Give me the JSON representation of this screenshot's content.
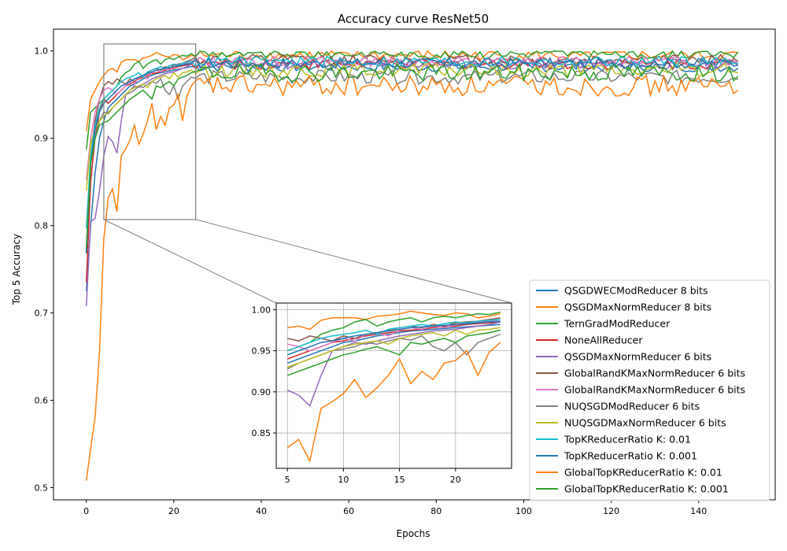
{
  "chart_data": {
    "type": "line",
    "title": "Accuracy curve ResNet50",
    "xlabel": "Epochs",
    "ylabel": "Top 5 Accuracy",
    "xlim": [
      -7.5,
      157.5
    ],
    "ylim": [
      0.486,
      1.025
    ],
    "xticks": [
      0,
      20,
      40,
      60,
      80,
      100,
      120,
      140
    ],
    "yticks": [
      0.5,
      0.6,
      0.7,
      0.8,
      0.9,
      1.0
    ],
    "grid": false,
    "legend_position": "bottom-right",
    "n_epochs": 150,
    "inset": {
      "xlim": [
        4,
        25
      ],
      "ylim": [
        0.807,
        1.008
      ],
      "xticks": [
        5,
        10,
        15,
        20
      ],
      "yticks": [
        0.85,
        0.9,
        0.95,
        1.0
      ],
      "grid": true
    },
    "series": [
      {
        "name": "QSGDWECModReducer 8 bits",
        "color": "#1f77b4",
        "start": 0.725,
        "early": [
          0.8,
          0.86,
          0.9,
          0.92,
          0.935,
          0.94,
          0.945,
          0.95,
          0.955,
          0.96,
          0.962,
          0.965,
          0.968,
          0.97,
          0.972,
          0.974,
          0.975,
          0.976,
          0.977,
          0.978,
          0.979,
          0.98,
          0.981,
          0.982
        ],
        "plateau": 0.99,
        "noise": 0.003
      },
      {
        "name": "QSGDMaxNormReducer 8 bits",
        "color": "#ff7f0e",
        "start": 0.908,
        "early": [
          0.945,
          0.955,
          0.965,
          0.972,
          0.978,
          0.98,
          0.976,
          0.987,
          0.99,
          0.99,
          0.99,
          0.988,
          0.992,
          0.993,
          0.995,
          0.998,
          0.996,
          0.994,
          0.993,
          0.996,
          0.995,
          0.99,
          0.992,
          0.995
        ],
        "plateau": 0.995,
        "noise": 0.003
      },
      {
        "name": "TernGradModReducer",
        "color": "#2ca02c",
        "start": 0.887,
        "early": [
          0.93,
          0.935,
          0.94,
          0.945,
          0.95,
          0.955,
          0.96,
          0.97,
          0.975,
          0.978,
          0.985,
          0.988,
          0.98,
          0.985,
          0.988,
          0.99,
          0.985,
          0.99,
          0.992,
          0.99,
          0.993,
          0.995,
          0.994,
          0.997
        ],
        "plateau": 0.996,
        "noise": 0.003
      },
      {
        "name": "NoneAllReducer",
        "color": "#d62728",
        "start": 0.735,
        "early": [
          0.85,
          0.9,
          0.93,
          0.945,
          0.94,
          0.945,
          0.95,
          0.955,
          0.96,
          0.962,
          0.965,
          0.968,
          0.97,
          0.972,
          0.974,
          0.975,
          0.976,
          0.978,
          0.979,
          0.98,
          0.982,
          0.983,
          0.984,
          0.985
        ],
        "plateau": 0.993,
        "noise": 0.003
      },
      {
        "name": "QSGDMaxNormReducer 6 bits",
        "color": "#9467bd",
        "start": 0.708,
        "early": [
          0.805,
          0.808,
          0.84,
          0.88,
          0.902,
          0.896,
          0.883,
          0.92,
          0.95,
          0.955,
          0.96,
          0.958,
          0.962,
          0.965,
          0.968,
          0.97,
          0.972,
          0.974,
          0.975,
          0.976,
          0.978,
          0.98,
          0.982,
          0.985
        ],
        "plateau": 0.991,
        "noise": 0.003
      },
      {
        "name": "GlobalRandKMaxNormReducer 6 bits",
        "color": "#8c564b",
        "start": 0.77,
        "early": [
          0.88,
          0.92,
          0.945,
          0.96,
          0.965,
          0.962,
          0.968,
          0.965,
          0.962,
          0.968,
          0.965,
          0.97,
          0.972,
          0.975,
          0.978,
          0.98,
          0.978,
          0.982,
          0.98,
          0.984,
          0.985,
          0.986,
          0.988,
          0.99
        ],
        "plateau": 0.994,
        "noise": 0.003
      },
      {
        "name": "GlobalRandKMaxNormReducer 6 bits",
        "color": "#e377c2",
        "start": 0.852,
        "early": [
          0.9,
          0.93,
          0.945,
          0.955,
          0.958,
          0.955,
          0.95,
          0.955,
          0.96,
          0.965,
          0.962,
          0.97,
          0.972,
          0.968,
          0.975,
          0.978,
          0.976,
          0.98,
          0.978,
          0.982,
          0.984,
          0.985,
          0.986,
          0.988
        ],
        "plateau": 0.993,
        "noise": 0.003
      },
      {
        "name": "NUQSGDModReducer 6 bits",
        "color": "#7f7f7f",
        "start": 0.772,
        "early": [
          0.87,
          0.9,
          0.92,
          0.93,
          0.928,
          0.935,
          0.94,
          0.945,
          0.95,
          0.952,
          0.955,
          0.96,
          0.958,
          0.962,
          0.965,
          0.963,
          0.968,
          0.955,
          0.95,
          0.96,
          0.945,
          0.96,
          0.965,
          0.97
        ],
        "plateau": 0.982,
        "noise": 0.004
      },
      {
        "name": "NUQSGDMaxNormReducer 6 bits",
        "color": "#bcbd22",
        "start": 0.84,
        "early": [
          0.895,
          0.91,
          0.92,
          0.925,
          0.93,
          0.935,
          0.94,
          0.945,
          0.95,
          0.955,
          0.958,
          0.96,
          0.962,
          0.958,
          0.965,
          0.968,
          0.97,
          0.972,
          0.968,
          0.975,
          0.97,
          0.975,
          0.976,
          0.978
        ],
        "plateau": 0.985,
        "noise": 0.004
      },
      {
        "name": "TopKReducerRatio K: 0.01",
        "color": "#17becf",
        "start": 0.797,
        "early": [
          0.88,
          0.915,
          0.935,
          0.945,
          0.95,
          0.955,
          0.96,
          0.965,
          0.968,
          0.97,
          0.972,
          0.975,
          0.97,
          0.976,
          0.978,
          0.98,
          0.982,
          0.98,
          0.983,
          0.985,
          0.984,
          0.986,
          0.987,
          0.988
        ],
        "plateau": 0.992,
        "noise": 0.003
      },
      {
        "name": "TopKReducerRatio K: 0.001",
        "color": "#1f77b4",
        "start": 0.768,
        "early": [
          0.87,
          0.91,
          0.93,
          0.94,
          0.945,
          0.95,
          0.955,
          0.96,
          0.962,
          0.965,
          0.968,
          0.97,
          0.972,
          0.974,
          0.976,
          0.978,
          0.979,
          0.98,
          0.981,
          0.982,
          0.983,
          0.984,
          0.985,
          0.986
        ],
        "plateau": 0.984,
        "noise": 0.003
      },
      {
        "name": "GlobalTopKReducerRatio K: 0.01",
        "color": "#ff7f0e",
        "start": 0.508,
        "early": [
          0.545,
          0.58,
          0.655,
          0.785,
          0.832,
          0.842,
          0.816,
          0.88,
          0.888,
          0.898,
          0.915,
          0.893,
          0.905,
          0.92,
          0.94,
          0.91,
          0.925,
          0.915,
          0.935,
          0.938,
          0.95,
          0.92,
          0.948,
          0.96
        ],
        "plateau": 0.98,
        "noise": 0.006
      },
      {
        "name": "GlobalTopKReducerRatio K: 0.001",
        "color": "#2ca02c",
        "start": 0.775,
        "early": [
          0.87,
          0.9,
          0.915,
          0.918,
          0.92,
          0.925,
          0.93,
          0.935,
          0.94,
          0.945,
          0.948,
          0.952,
          0.955,
          0.95,
          0.945,
          0.96,
          0.958,
          0.962,
          0.965,
          0.96,
          0.968,
          0.97,
          0.972,
          0.975
        ],
        "plateau": 0.973,
        "noise": 0.005
      }
    ]
  }
}
